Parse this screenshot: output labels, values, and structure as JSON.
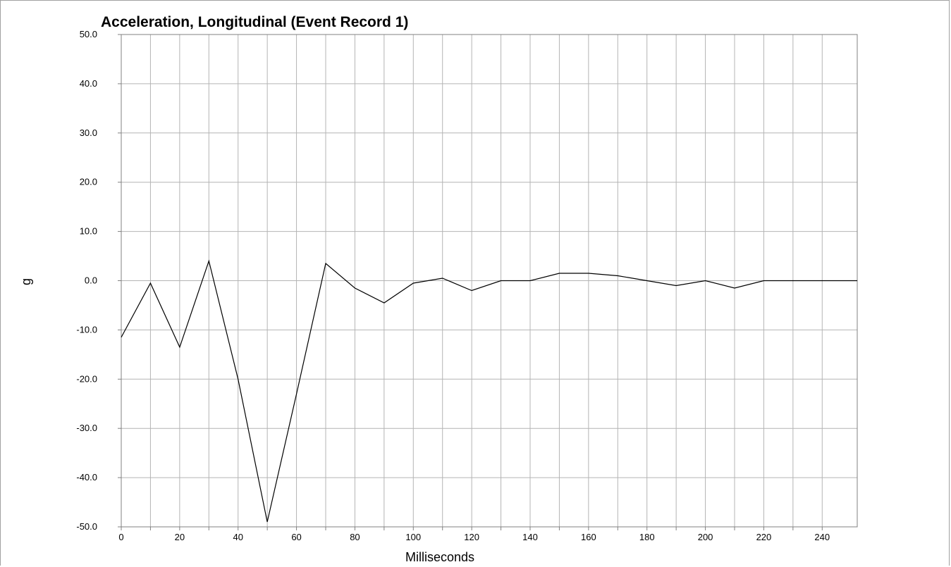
{
  "chart_data": {
    "type": "line",
    "title": "Acceleration, Longitudinal (Event Record 1)",
    "xlabel": "Milliseconds",
    "ylabel": "g",
    "xlim": [
      0,
      252
    ],
    "ylim": [
      -50,
      50
    ],
    "x_ticks": [
      "0",
      "20",
      "40",
      "60",
      "80",
      "100",
      "120",
      "140",
      "160",
      "180",
      "200",
      "220",
      "240"
    ],
    "x_grid": [
      0,
      10,
      20,
      30,
      40,
      50,
      60,
      70,
      80,
      90,
      100,
      110,
      120,
      130,
      140,
      150,
      160,
      170,
      180,
      190,
      200,
      210,
      220,
      230,
      240
    ],
    "y_ticks": [
      "50.0",
      "40.0",
      "30.0",
      "20.0",
      "10.0",
      "0.0",
      "-10.0",
      "-20.0",
      "-30.0",
      "-40.0",
      "-50.0"
    ],
    "grid": true,
    "line_color": "#000000",
    "grid_color": "#b4b4b4",
    "series": [
      {
        "x": [
          0,
          10,
          20,
          30,
          40,
          50,
          60,
          70,
          80,
          90,
          100,
          110,
          120,
          130,
          140,
          150,
          160,
          170,
          180,
          190,
          200,
          210,
          220,
          230,
          240,
          252
        ],
        "values": [
          -11.5,
          -0.5,
          -13.5,
          4.0,
          -20.0,
          -49.0,
          -23.0,
          3.5,
          -1.5,
          -4.5,
          -0.5,
          0.5,
          -2.0,
          0.0,
          0.0,
          1.5,
          1.5,
          1.0,
          0.0,
          -1.0,
          0.0,
          -1.5,
          0.0,
          0.0,
          0.0,
          0.0
        ]
      }
    ]
  }
}
